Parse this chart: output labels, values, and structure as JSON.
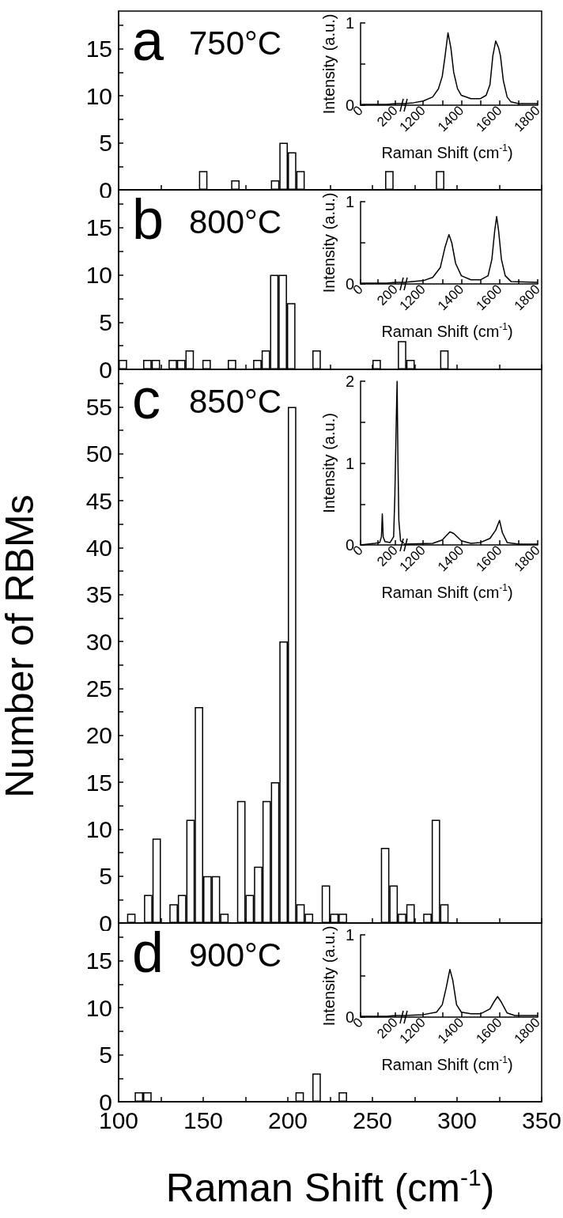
{
  "chart_data": [
    {
      "type": "bar",
      "title": "a",
      "subtitle": "750°C",
      "color": "#000000",
      "x": [
        150,
        169,
        192.5,
        197.5,
        202.5,
        207.5,
        260,
        290
      ],
      "values": [
        2,
        1,
        1,
        5,
        4,
        2,
        2,
        2
      ],
      "xlim": [
        100,
        350
      ],
      "xticks": [
        100,
        {
          "value": 125,
          "label": null
        },
        150,
        {
          "value": 175,
          "label": null
        },
        200,
        {
          "value": 225,
          "label": null
        },
        250,
        {
          "value": 275,
          "label": null
        },
        300,
        {
          "value": 325,
          "label": null
        },
        350
      ],
      "ylim": [
        0,
        19
      ],
      "yticks": [
        0,
        {
          "value": 2.5,
          "label": null
        },
        5,
        {
          "value": 7.5,
          "label": null
        },
        10,
        {
          "value": 12.5,
          "label": null
        },
        15,
        {
          "value": 17.5,
          "label": null
        }
      ],
      "tick_labels": "y"
    },
    {
      "type": "line",
      "ylabel": "Intensity (a.u.)",
      "color": "#000000",
      "x": [
        0,
        50,
        100,
        150,
        200,
        250
      ],
      "values": [
        0.01,
        0.01,
        0.01,
        0.01,
        0.02,
        0.02
      ],
      "xlim": [
        0,
        250
      ],
      "xticks": [
        0,
        {
          "value": 100,
          "label": null
        },
        200
      ],
      "ylim": [
        0,
        1
      ],
      "yticks": [
        0,
        {
          "value": 0.5,
          "label": null
        },
        1
      ]
    },
    {
      "type": "line",
      "xlabel": "Raman Shift (cm$^{-1}$)",
      "color": "#000000",
      "x": [
        1100,
        1150,
        1200,
        1250,
        1280,
        1300,
        1315,
        1330,
        1345,
        1360,
        1380,
        1400,
        1450,
        1500,
        1530,
        1550,
        1565,
        1580,
        1595,
        1605,
        1620,
        1640,
        1660,
        1700,
        1800
      ],
      "values": [
        0.02,
        0.03,
        0.05,
        0.1,
        0.2,
        0.35,
        0.6,
        0.88,
        0.7,
        0.4,
        0.2,
        0.12,
        0.08,
        0.08,
        0.12,
        0.25,
        0.6,
        0.78,
        0.7,
        0.6,
        0.3,
        0.1,
        0.04,
        0.02,
        0.02
      ],
      "xlim": [
        1100,
        1800
      ],
      "xticks": [
        1200,
        {
          "value": 1300,
          "label": null
        },
        1400,
        {
          "value": 1500,
          "label": null
        },
        1600,
        {
          "value": 1700,
          "label": null
        },
        1800
      ],
      "ylim": [
        0,
        1
      ],
      "tick_labels": "x"
    },
    {
      "type": "bar",
      "title": "b",
      "subtitle": "800°C",
      "color": "#000000",
      "x": [
        102.5,
        117,
        122,
        132,
        137,
        142,
        152,
        167,
        182,
        187,
        192,
        197,
        202,
        217,
        252.5,
        267.5,
        272.5,
        292.5
      ],
      "values": [
        1,
        1,
        1,
        1,
        1,
        2,
        1,
        1,
        1,
        2,
        10,
        10,
        7,
        2,
        1,
        3,
        1,
        2
      ],
      "xlim": [
        100,
        350
      ],
      "xticks": [
        100,
        {
          "value": 125,
          "label": null
        },
        150,
        {
          "value": 175,
          "label": null
        },
        200,
        {
          "value": 225,
          "label": null
        },
        250,
        {
          "value": 275,
          "label": null
        },
        300,
        {
          "value": 325,
          "label": null
        },
        350
      ],
      "ylim": [
        0,
        19
      ],
      "yticks": [
        0,
        {
          "value": 2.5,
          "label": null
        },
        5,
        {
          "value": 7.5,
          "label": null
        },
        10,
        {
          "value": 12.5,
          "label": null
        },
        15,
        {
          "value": 17.5,
          "label": null
        }
      ],
      "tick_labels": "y"
    },
    {
      "type": "line",
      "ylabel": "Intensity (a.u.)",
      "color": "#000000",
      "x": [
        0,
        50,
        100,
        150,
        200,
        250
      ],
      "values": [
        0.01,
        0.01,
        0.01,
        0.01,
        0.02,
        0.02
      ],
      "xlim": [
        0,
        250
      ],
      "xticks": [
        0,
        {
          "value": 100,
          "label": null
        },
        200
      ],
      "ylim": [
        0,
        1
      ],
      "yticks": [
        0,
        {
          "value": 0.5,
          "label": null
        },
        1
      ]
    },
    {
      "type": "line",
      "xlabel": "Raman Shift (cm$^{-1}$)",
      "color": "#000000",
      "x": [
        1100,
        1200,
        1250,
        1290,
        1315,
        1335,
        1350,
        1370,
        1400,
        1450,
        1500,
        1540,
        1560,
        1575,
        1585,
        1595,
        1610,
        1630,
        1660,
        1800
      ],
      "values": [
        0.02,
        0.04,
        0.08,
        0.2,
        0.45,
        0.6,
        0.5,
        0.25,
        0.1,
        0.05,
        0.05,
        0.1,
        0.3,
        0.65,
        0.82,
        0.65,
        0.3,
        0.1,
        0.03,
        0.02
      ],
      "xlim": [
        1100,
        1800
      ],
      "xticks": [
        1200,
        {
          "value": 1300,
          "label": null
        },
        1400,
        {
          "value": 1500,
          "label": null
        },
        1600,
        {
          "value": 1700,
          "label": null
        },
        1800
      ],
      "ylim": [
        0,
        1
      ],
      "tick_labels": "x"
    },
    {
      "type": "bar",
      "title": "c",
      "subtitle": "850°C",
      "ylabel": "Number of RBMs",
      "color": "#000000",
      "x": [
        107.5,
        117.5,
        122.5,
        132.5,
        137.5,
        142.5,
        147.5,
        152.5,
        157.5,
        162.5,
        172.5,
        177.5,
        182.5,
        187.5,
        192.5,
        197.5,
        202.5,
        207.5,
        212.5,
        222.5,
        227.5,
        232.5,
        257.5,
        262.5,
        267.5,
        272.5,
        282.5,
        287.5,
        292.5
      ],
      "values": [
        1,
        3,
        9,
        2,
        3,
        11,
        23,
        5,
        5,
        1,
        13,
        3,
        6,
        13,
        15,
        30,
        55,
        2,
        1,
        4,
        1,
        1,
        8,
        4,
        1,
        2,
        1,
        11,
        2
      ],
      "xlim": [
        100,
        350
      ],
      "xticks": [
        100,
        {
          "value": 125,
          "label": null
        },
        150,
        {
          "value": 175,
          "label": null
        },
        200,
        {
          "value": 225,
          "label": null
        },
        250,
        {
          "value": 275,
          "label": null
        },
        300,
        {
          "value": 325,
          "label": null
        },
        350
      ],
      "ylim": [
        0,
        59
      ],
      "yticks": [
        0,
        {
          "value": 2.5,
          "label": null
        },
        5,
        {
          "value": 7.5,
          "label": null
        },
        10,
        {
          "value": 12.5,
          "label": null
        },
        15,
        {
          "value": 17.5,
          "label": null
        },
        20,
        {
          "value": 22.5,
          "label": null
        },
        25,
        {
          "value": 27.5,
          "label": null
        },
        30,
        {
          "value": 32.5,
          "label": null
        },
        35,
        {
          "value": 37.5,
          "label": null
        },
        40,
        {
          "value": 42.5,
          "label": null
        },
        45,
        {
          "value": 47.5,
          "label": null
        },
        50,
        {
          "value": 52.5,
          "label": null
        },
        55,
        {
          "value": 57.5,
          "label": null
        }
      ],
      "tick_labels": "y"
    },
    {
      "type": "line",
      "ylabel": "Intensity (a.u.)",
      "color": "#000000",
      "x": [
        0,
        80,
        110,
        120,
        125,
        130,
        140,
        170,
        190,
        197,
        205,
        210,
        215,
        220,
        230,
        250
      ],
      "values": [
        0,
        0.02,
        0.03,
        0.1,
        0.38,
        0.1,
        0.04,
        0.03,
        0.1,
        0.6,
        1.5,
        2,
        1,
        0.3,
        0.05,
        0.02
      ],
      "xlim": [
        0,
        250
      ],
      "xticks": [
        0,
        {
          "value": 100,
          "label": null
        },
        200
      ],
      "ylim": [
        0,
        2
      ],
      "yticks": [
        0,
        {
          "value": 0.5,
          "label": null
        },
        1,
        {
          "value": 1.5,
          "label": null
        },
        2
      ]
    },
    {
      "type": "line",
      "xlabel": "Raman Shift (cm$^{-1}$)",
      "color": "#000000",
      "x": [
        1100,
        1250,
        1300,
        1340,
        1360,
        1400,
        1450,
        1500,
        1550,
        1580,
        1600,
        1615,
        1640,
        1700,
        1800
      ],
      "values": [
        0.01,
        0.02,
        0.06,
        0.16,
        0.14,
        0.05,
        0.02,
        0.03,
        0.08,
        0.18,
        0.3,
        0.15,
        0.03,
        0.01,
        0.01
      ],
      "xlim": [
        1100,
        1800
      ],
      "xticks": [
        1200,
        {
          "value": 1300,
          "label": null
        },
        1400,
        {
          "value": 1500,
          "label": null
        },
        1600,
        {
          "value": 1700,
          "label": null
        },
        1800
      ],
      "ylim": [
        0,
        2
      ],
      "tick_labels": "x"
    },
    {
      "type": "bar",
      "title": "d",
      "subtitle": "900°C",
      "xlabel": "Raman Shift (cm$^{-1}$)",
      "color": "#000000",
      "x": [
        112,
        117,
        207,
        217,
        232.5
      ],
      "values": [
        1,
        1,
        1,
        3,
        1
      ],
      "xlim": [
        100,
        350
      ],
      "xticks": [
        100,
        {
          "value": 125,
          "label": null
        },
        150,
        {
          "value": 175,
          "label": null
        },
        200,
        {
          "value": 225,
          "label": null
        },
        250,
        {
          "value": 275,
          "label": null
        },
        300,
        {
          "value": 325,
          "label": null
        },
        350
      ],
      "ylim": [
        0,
        19
      ],
      "yticks": [
        0,
        {
          "value": 2.5,
          "label": null
        },
        5,
        {
          "value": 7.5,
          "label": null
        },
        10,
        {
          "value": 12.5,
          "label": null
        },
        15,
        {
          "value": 17.5,
          "label": null
        }
      ]
    },
    {
      "type": "line",
      "ylabel": "Intensity (a.u.)",
      "color": "#000000",
      "x": [
        0,
        50,
        100,
        150,
        200,
        250
      ],
      "values": [
        0.01,
        0.01,
        0.01,
        0.01,
        0.02,
        0.02
      ],
      "xlim": [
        0,
        250
      ],
      "xticks": [
        0,
        {
          "value": 100,
          "label": null
        },
        200
      ],
      "ylim": [
        0,
        1
      ],
      "yticks": [
        0,
        {
          "value": 0.5,
          "label": null
        },
        1
      ]
    },
    {
      "type": "line",
      "xlabel": "Raman Shift (cm$^{-1}$)",
      "color": "#000000",
      "x": [
        1100,
        1200,
        1270,
        1300,
        1320,
        1340,
        1355,
        1375,
        1400,
        1450,
        1500,
        1550,
        1575,
        1590,
        1610,
        1640,
        1680,
        1800
      ],
      "values": [
        0.02,
        0.03,
        0.06,
        0.15,
        0.35,
        0.58,
        0.45,
        0.15,
        0.06,
        0.04,
        0.04,
        0.1,
        0.2,
        0.25,
        0.18,
        0.05,
        0.02,
        0.02
      ],
      "xlim": [
        1100,
        1800
      ],
      "xticks": [
        1200,
        {
          "value": 1300,
          "label": null
        },
        1400,
        {
          "value": 1500,
          "label": null
        },
        1600,
        {
          "value": 1700,
          "label": null
        },
        1800
      ],
      "ylim": [
        0,
        1
      ],
      "tick_labels": "x"
    }
  ]
}
